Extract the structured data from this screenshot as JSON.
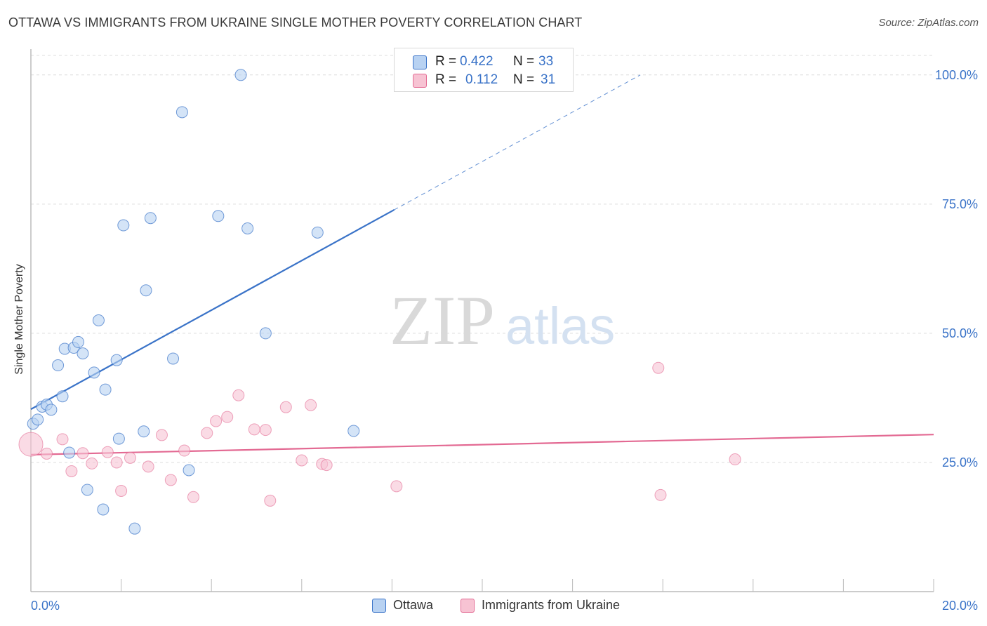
{
  "title": "OTTAWA VS IMMIGRANTS FROM UKRAINE SINGLE MOTHER POVERTY CORRELATION CHART",
  "source": "Source: ZipAtlas.com",
  "watermark": {
    "zip": "ZIP",
    "atlas": "atlas"
  },
  "legend_top": {
    "rows": [
      {
        "r_label": "R =",
        "r_value": "0.422",
        "n_label": "N =",
        "n_value": "33"
      },
      {
        "r_label": "R =",
        "r_value": "0.112",
        "n_label": "N =",
        "n_value": "31"
      }
    ]
  },
  "legend_bottom": {
    "items": [
      "Ottawa",
      "Immigrants from Ukraine"
    ]
  },
  "colors": {
    "ottawa": "#3a73c8",
    "ottawa_fill": "#b8d2f2",
    "ukraine": "#e36a93",
    "ukraine_fill": "#f7c3d3",
    "grid": "#dcdcdc",
    "tick_text": "#3a73c8"
  },
  "chart_data": {
    "type": "scatter",
    "title": "OTTAWA VS IMMIGRANTS FROM UKRAINE SINGLE MOTHER POVERTY CORRELATION CHART",
    "xlabel": "",
    "ylabel": "Single Mother Poverty",
    "xlim": [
      0,
      20
    ],
    "ylim": [
      0,
      105
    ],
    "x_tick_labels": [
      "0.0%",
      "20.0%"
    ],
    "y_ticks": [
      25,
      50,
      75,
      100
    ],
    "y_tick_labels": [
      "25.0%",
      "50.0%",
      "75.0%",
      "100.0%"
    ],
    "grid": true,
    "legend_position": "bottom",
    "series": [
      {
        "name": "Ottawa",
        "r": 0.422,
        "n": 33,
        "points": [
          [
            0.05,
            32.5
          ],
          [
            0.15,
            33.3
          ],
          [
            0.25,
            35.8
          ],
          [
            0.35,
            36.2
          ],
          [
            0.45,
            35.2
          ],
          [
            0.6,
            43.8
          ],
          [
            0.7,
            37.8
          ],
          [
            0.75,
            47.0
          ],
          [
            0.85,
            26.9
          ],
          [
            0.95,
            47.2
          ],
          [
            1.05,
            48.3
          ],
          [
            1.15,
            46.1
          ],
          [
            1.25,
            19.7
          ],
          [
            1.4,
            42.4
          ],
          [
            1.5,
            52.5
          ],
          [
            1.6,
            15.9
          ],
          [
            1.65,
            39.1
          ],
          [
            1.9,
            44.8
          ],
          [
            1.95,
            29.6
          ],
          [
            2.05,
            70.9
          ],
          [
            2.3,
            12.2
          ],
          [
            2.5,
            31.0
          ],
          [
            2.55,
            58.3
          ],
          [
            2.65,
            72.3
          ],
          [
            3.15,
            45.1
          ],
          [
            3.35,
            92.8
          ],
          [
            3.5,
            23.5
          ],
          [
            4.15,
            72.7
          ],
          [
            4.65,
            100.0
          ],
          [
            4.8,
            70.3
          ],
          [
            5.2,
            50.0
          ],
          [
            6.35,
            69.5
          ],
          [
            7.15,
            31.1
          ]
        ],
        "trend_solid": [
          [
            0,
            35.3
          ],
          [
            8.05,
            73.9
          ]
        ],
        "trend_dashed": [
          [
            8.05,
            73.9
          ],
          [
            13.5,
            100.0
          ]
        ]
      },
      {
        "name": "Immigrants from Ukraine",
        "r": 0.112,
        "n": 31,
        "points": [
          [
            0.0,
            28.5
          ],
          [
            0.35,
            26.7
          ],
          [
            0.7,
            29.5
          ],
          [
            0.9,
            23.3
          ],
          [
            1.15,
            26.8
          ],
          [
            1.35,
            24.8
          ],
          [
            1.7,
            27.0
          ],
          [
            1.9,
            25.0
          ],
          [
            2.0,
            19.5
          ],
          [
            2.2,
            25.9
          ],
          [
            2.6,
            24.2
          ],
          [
            2.9,
            30.3
          ],
          [
            3.1,
            21.6
          ],
          [
            3.4,
            27.3
          ],
          [
            3.6,
            18.3
          ],
          [
            3.9,
            30.7
          ],
          [
            4.1,
            33.0
          ],
          [
            4.35,
            33.8
          ],
          [
            4.6,
            38.0
          ],
          [
            4.95,
            31.4
          ],
          [
            5.2,
            31.3
          ],
          [
            5.3,
            17.6
          ],
          [
            5.65,
            35.7
          ],
          [
            6.0,
            25.4
          ],
          [
            6.2,
            36.1
          ],
          [
            6.45,
            24.7
          ],
          [
            6.55,
            24.5
          ],
          [
            8.1,
            20.4
          ],
          [
            13.9,
            43.3
          ],
          [
            13.95,
            18.7
          ],
          [
            15.6,
            25.6
          ]
        ],
        "trend_solid": [
          [
            0,
            26.5
          ],
          [
            20,
            30.4
          ]
        ]
      }
    ]
  }
}
